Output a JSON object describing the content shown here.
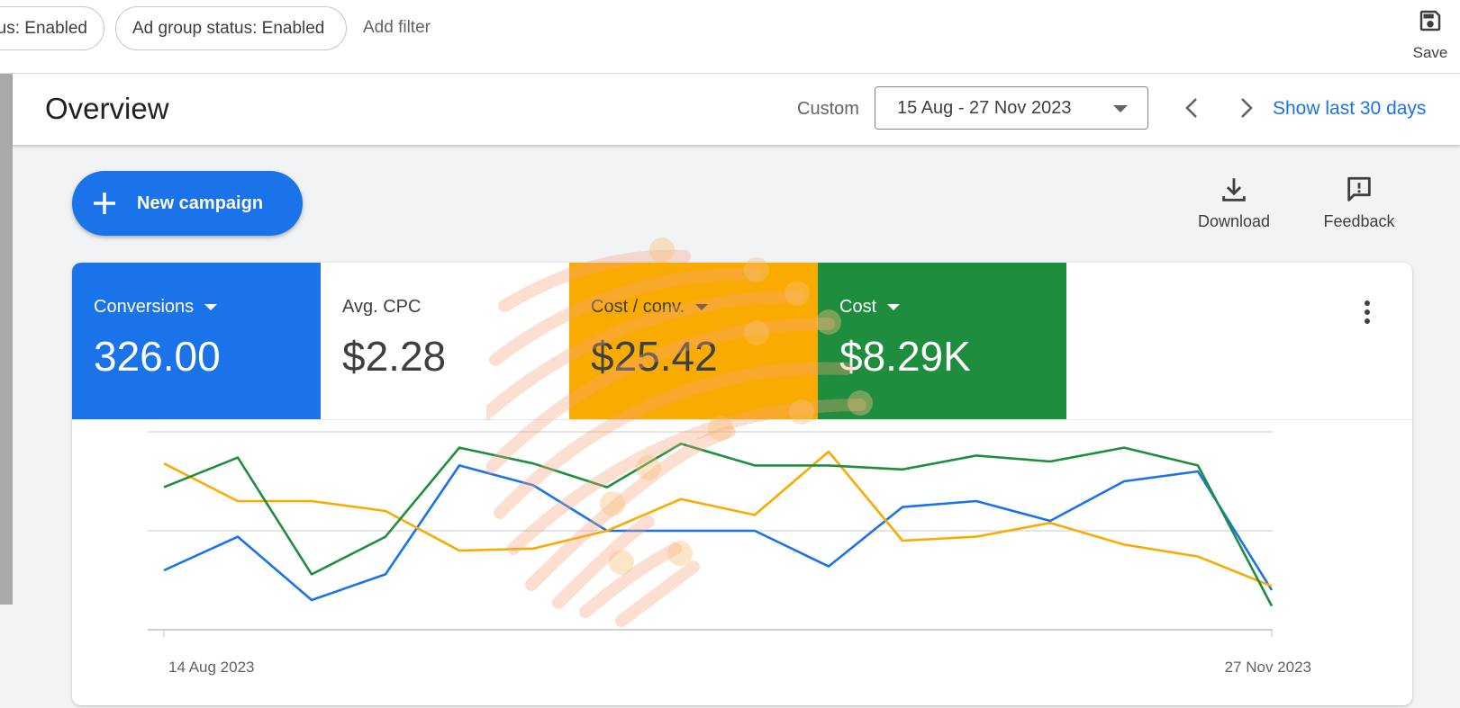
{
  "filters": {
    "chips": [
      "us: Enabled",
      "Ad group status: Enabled"
    ],
    "add_filter": "Add filter",
    "save_label": "Save"
  },
  "overview": {
    "title": "Overview",
    "custom_label": "Custom",
    "date_range": "15 Aug - 27 Nov 2023",
    "show_last": "Show last 30 days"
  },
  "actions": {
    "new_campaign": "New campaign",
    "download": "Download",
    "feedback": "Feedback"
  },
  "metrics": [
    {
      "label": "Conversions",
      "value": "326.00",
      "has_dropdown": true,
      "color": "#1a73e8"
    },
    {
      "label": "Avg. CPC",
      "value": "$2.28",
      "has_dropdown": false,
      "color": "#ffffff"
    },
    {
      "label": "Cost / conv.",
      "value": "$25.42",
      "has_dropdown": true,
      "color": "#f9ab00"
    },
    {
      "label": "Cost",
      "value": "$8.29K",
      "has_dropdown": true,
      "color": "#1e8e3e"
    }
  ],
  "chart_data": {
    "type": "line",
    "x_start_label": "14 Aug 2023",
    "x_end_label": "27 Nov 2023",
    "grid": true,
    "series": [
      {
        "color": "#1a73e8",
        "values": [
          30,
          47,
          15,
          28,
          83,
          73,
          50,
          50,
          50,
          32,
          62,
          65,
          55,
          75,
          80,
          20
        ]
      },
      {
        "color": "#f9ab00",
        "values": [
          84,
          65,
          65,
          60,
          40,
          41,
          50,
          66,
          58,
          90,
          45,
          47,
          54,
          43,
          37,
          22
        ]
      },
      {
        "color": "#1e8e3e",
        "values": [
          72,
          87,
          28,
          47,
          92,
          84,
          72,
          94,
          83,
          83,
          81,
          88,
          85,
          92,
          83,
          12
        ]
      }
    ]
  }
}
